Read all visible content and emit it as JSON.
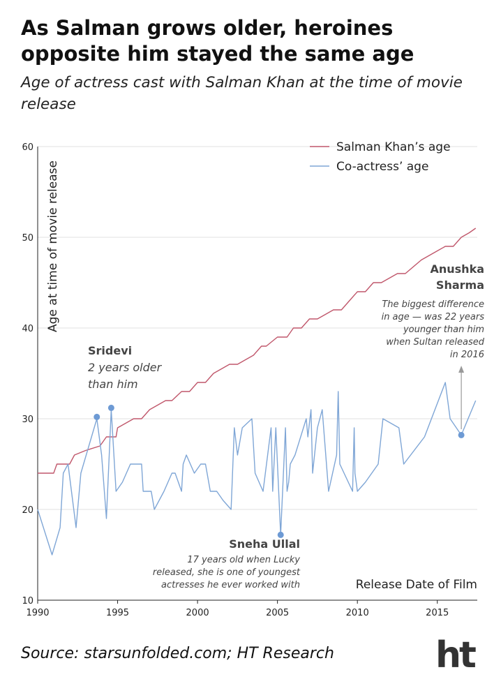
{
  "header": {
    "title": "As Salman grows older, heroines opposite him stayed the same age",
    "subtitle": "Age of actress cast with Salman Khan at the time of movie release"
  },
  "source": "Source: starsunfolded.com; HT Research",
  "logo": "ht",
  "colors": {
    "salman": "#c0576b",
    "actress": "#7fa6d6",
    "marker": "#6d9ad4",
    "grid": "#e2e2e2",
    "annotation_arrow": "#999999",
    "logo": "#333333"
  },
  "chart_data": {
    "type": "line",
    "xlabel": "Release Date of Film",
    "ylabel": "Age at time of movie release",
    "xlim": [
      1990,
      2017.5
    ],
    "ylim": [
      10,
      60
    ],
    "xticks": [
      1990,
      1995,
      2000,
      2005,
      2010,
      2015
    ],
    "yticks": [
      10,
      20,
      30,
      40,
      50,
      60
    ],
    "grid": "horizontal",
    "legend_position": "top-right",
    "series": [
      {
        "name": "Salman Khan’s age",
        "color": "#c0576b",
        "x": [
          1990,
          1991,
          1991.2,
          1992,
          1992.3,
          1993,
          1993.9,
          1994.3,
          1994.9,
          1995,
          1996,
          1996.5,
          1997,
          1998,
          1998.4,
          1999,
          1999.5,
          2000,
          2000.5,
          2001,
          2001.5,
          2002,
          2002.5,
          2003,
          2003.5,
          2004,
          2004.3,
          2005,
          2005.6,
          2006,
          2006.5,
          2007,
          2007.5,
          2008,
          2008.5,
          2009,
          2009.5,
          2010,
          2010.5,
          2011,
          2011.5,
          2012,
          2012.5,
          2013,
          2014,
          2015,
          2015.5,
          2016,
          2016.5,
          2017,
          2017.4
        ],
        "y": [
          24,
          24,
          25,
          25,
          26,
          26.5,
          27,
          28,
          28,
          29,
          30,
          30,
          31,
          32,
          32,
          33,
          33,
          34,
          34,
          35,
          35.5,
          36,
          36,
          36.5,
          37,
          38,
          38,
          39,
          39,
          40,
          40,
          41,
          41,
          41.5,
          42,
          42,
          43,
          44,
          44,
          45,
          45,
          45.5,
          46,
          46,
          47.5,
          48.5,
          49,
          49,
          50,
          50.5,
          51
        ]
      },
      {
        "name": "Co-actress’ age",
        "color": "#7fa6d6",
        "x": [
          1990,
          1990.9,
          1991.4,
          1991.6,
          1991.9,
          1992.4,
          1992.7,
          1993.7,
          1994.0,
          1994.3,
          1994.6,
          1994.9,
          1995.3,
          1995.8,
          1996.0,
          1996.5,
          1996.6,
          1997.1,
          1997.3,
          1997.9,
          1998.4,
          1998.6,
          1999.0,
          1999.1,
          1999.3,
          1999.8,
          2000.2,
          2000.5,
          2000.8,
          2001.2,
          2001.6,
          2002.1,
          2002.3,
          2002.5,
          2002.8,
          2003.4,
          2003.6,
          2004.1,
          2004.6,
          2004.7,
          2004.9,
          2005.2,
          2005.5,
          2005.6,
          2005.7,
          2005.8,
          2006.1,
          2006.8,
          2006.9,
          2007.1,
          2007.2,
          2007.5,
          2007.8,
          2008.2,
          2008.7,
          2008.8,
          2008.9,
          2009.7,
          2009.8,
          2009.85,
          2010.0,
          2010.5,
          2011.3,
          2011.6,
          2012.6,
          2012.9,
          2014.2,
          2015.5,
          2015.8,
          2016.5,
          2017.4
        ],
        "y": [
          20,
          15,
          18,
          24,
          25,
          18,
          24,
          30,
          26,
          19,
          31,
          22,
          23,
          25,
          25,
          25,
          22,
          22,
          20,
          22,
          24,
          24,
          22,
          25,
          26,
          24,
          25,
          25,
          22,
          22,
          21,
          20,
          29,
          26,
          29,
          30,
          24,
          22,
          29,
          22,
          29,
          17.2,
          29,
          22,
          23,
          25,
          26,
          30,
          28,
          31,
          24,
          29,
          31,
          22,
          26,
          33,
          25,
          22,
          29,
          24,
          22,
          23,
          25,
          30,
          29,
          25,
          28,
          34,
          30,
          28.2,
          32
        ]
      }
    ],
    "highlights": [
      {
        "name": "sridevi-point-1",
        "x": 1993.7,
        "y": 30.2
      },
      {
        "name": "sridevi-point-2",
        "x": 1994.6,
        "y": 31.2
      },
      {
        "name": "sneha-ullal-point",
        "x": 2005.2,
        "y": 17.2
      },
      {
        "name": "anushka-sharma-point",
        "x": 2016.5,
        "y": 28.2
      }
    ],
    "annotations": {
      "sridevi": {
        "title": "Sridevi",
        "text": [
          "2 years older",
          "than him"
        ]
      },
      "sneha": {
        "title": "Sneha Ullal",
        "text": [
          "17 years old when Lucky",
          "released, she is one of youngest",
          "actresses he ever worked with"
        ]
      },
      "anushka": {
        "title": [
          "Anushka",
          "Sharma"
        ],
        "text": [
          "The biggest difference",
          "in age — was 22 years",
          "younger than him",
          "when Sultan released",
          "in 2016"
        ]
      }
    }
  }
}
